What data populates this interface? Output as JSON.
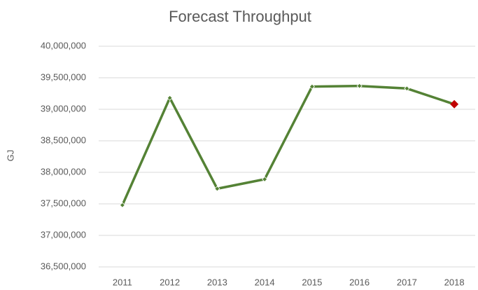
{
  "chart_data": {
    "type": "line",
    "title": "Forecast Throughput",
    "y_label": "GJ",
    "categories": [
      "2011",
      "2012",
      "2013",
      "2014",
      "2015",
      "2016",
      "2017",
      "2018"
    ],
    "series": [
      {
        "name": "Forecast Throughput",
        "color": "#548235",
        "values": [
          37480000,
          39180000,
          37740000,
          37890000,
          39360000,
          39370000,
          39330000,
          39080000
        ],
        "marker_colors": [
          "#548235",
          "#548235",
          "#548235",
          "#548235",
          "#548235",
          "#548235",
          "#548235",
          "#c00000"
        ]
      }
    ],
    "ylim": [
      36500000,
      40000000
    ],
    "yticks": [
      {
        "value": 36500000,
        "label": "36,500,000"
      },
      {
        "value": 37000000,
        "label": "37,000,000"
      },
      {
        "value": 37500000,
        "label": "37,500,000"
      },
      {
        "value": 38000000,
        "label": "38,000,000"
      },
      {
        "value": 38500000,
        "label": "38,500,000"
      },
      {
        "value": 39000000,
        "label": "39,000,000"
      },
      {
        "value": 39500000,
        "label": "39,500,000"
      },
      {
        "value": 40000000,
        "label": "40,000,000"
      }
    ],
    "grid": true
  }
}
